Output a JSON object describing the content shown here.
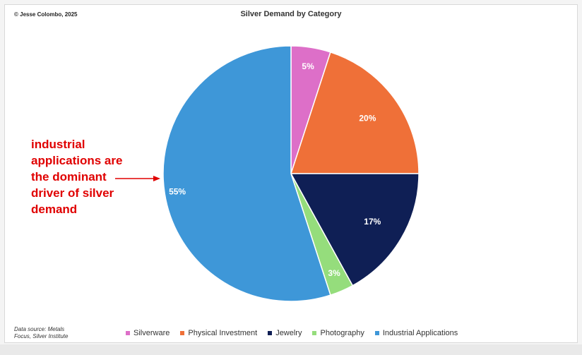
{
  "copyright": "© Jesse Colombo, 2025",
  "annotation": {
    "lines": [
      "industrial",
      "applications are",
      "the dominant",
      "driver of silver",
      "demand"
    ],
    "color": "#e00000"
  },
  "source": {
    "line1": "Data source: Metals",
    "line2": "Focus, Silver Institute"
  },
  "chart_data": {
    "type": "pie",
    "title": "Silver Demand by Category",
    "categories": [
      "Silverware",
      "Physical Investment",
      "Jewelry",
      "Photography",
      "Industrial Applications"
    ],
    "values": [
      5,
      20,
      17,
      3,
      55
    ],
    "labels": [
      "5%",
      "20%",
      "17%",
      "3%",
      "55%"
    ],
    "colors": [
      "#dd6fc8",
      "#ef7038",
      "#0f1f55",
      "#95dd7c",
      "#3e97d8"
    ],
    "legend_position": "bottom",
    "start": "12 o'clock, clockwise"
  }
}
